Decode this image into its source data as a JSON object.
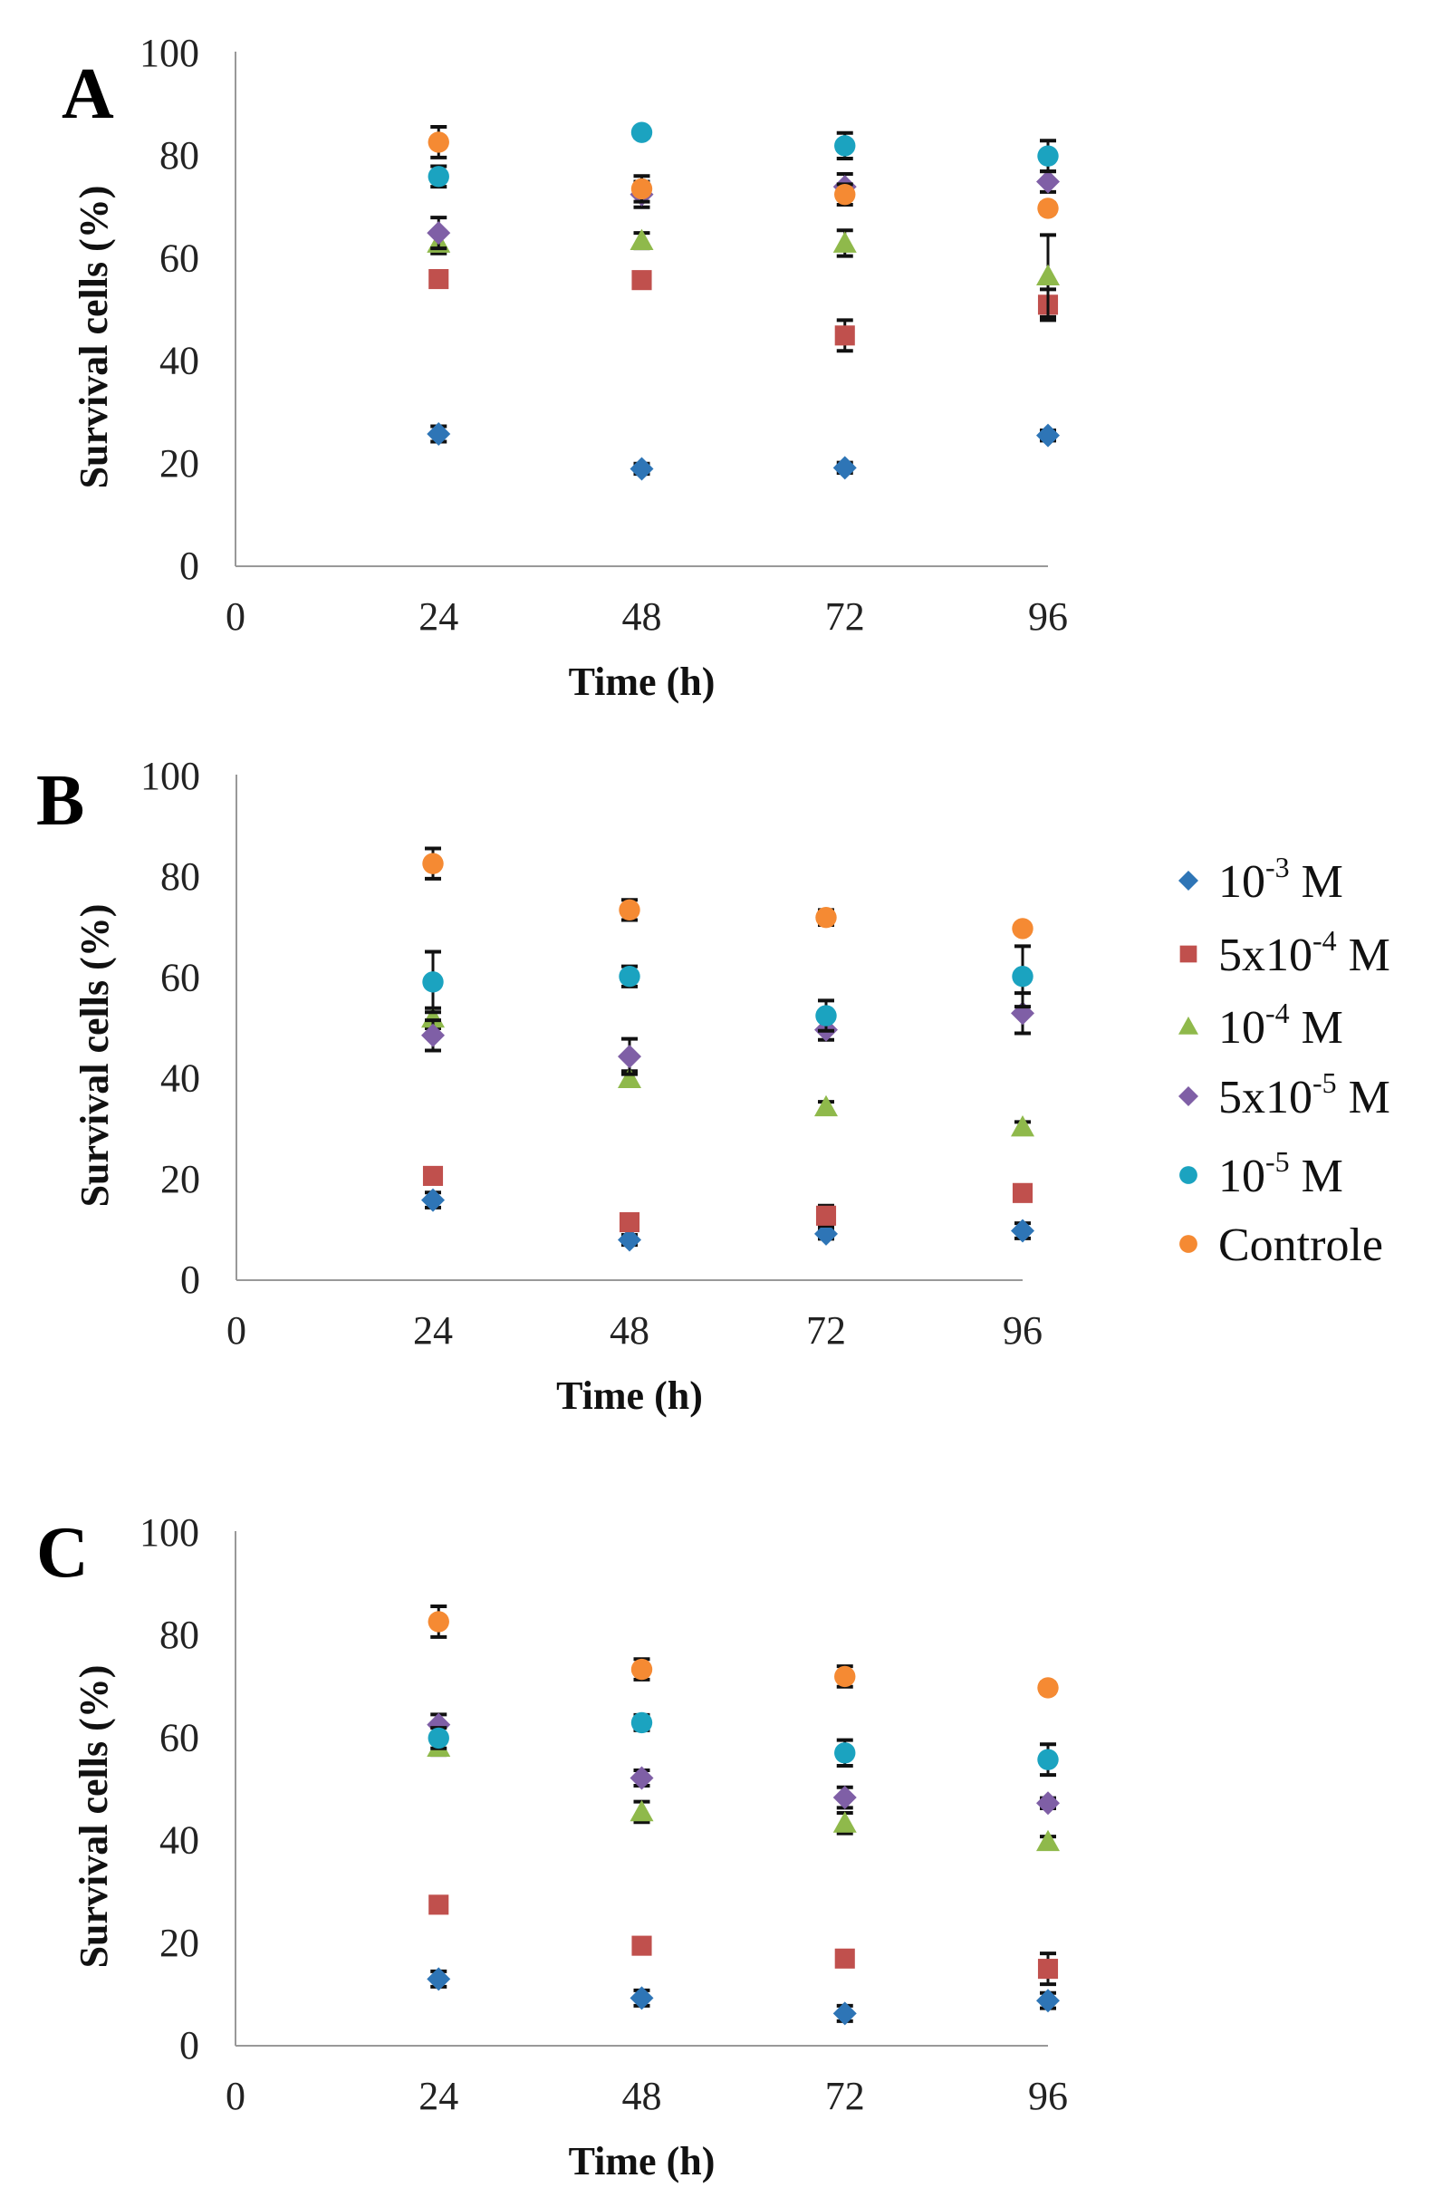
{
  "chart_data": {
    "type": "scatter",
    "x": [
      24,
      48,
      72,
      96
    ],
    "xticks": [
      "0",
      "24",
      "48",
      "72",
      "96"
    ],
    "yticks": [
      "0",
      "20",
      "40",
      "60",
      "80",
      "100"
    ],
    "xlim": [
      0,
      96
    ],
    "ylim": [
      0,
      100
    ],
    "grid": false,
    "legend_placement": "right of panel B",
    "legend": [
      {
        "base": "10",
        "exp": "-3",
        "unit": " M",
        "color": "#2e75b6",
        "marker": "diamond"
      },
      {
        "base": "5x10",
        "exp": "-4",
        "unit": " M",
        "color": "#c0504d",
        "marker": "square"
      },
      {
        "base": "10",
        "exp": "-4",
        "unit": " M",
        "color": "#8fb94b",
        "marker": "triangle"
      },
      {
        "base": "5x10",
        "exp": "-5",
        "unit": " M",
        "color": "#7f5fa6",
        "marker": "diamond"
      },
      {
        "base": "10",
        "exp": "-5",
        "unit": " M",
        "color": "#1ba3c0",
        "marker": "circle"
      },
      {
        "base": "Controle",
        "exp": "",
        "unit": "",
        "color": "#f58a33",
        "marker": "circle"
      }
    ],
    "panels": [
      {
        "label": "A",
        "xlabel": "Time (h)",
        "ylabel": "Survival  cells (%)",
        "series": [
          {
            "values": [
              25.8,
              19.0,
              19.2,
              25.5
            ],
            "error": [
              1.5,
              1.0,
              1.0,
              1.0
            ]
          },
          {
            "values": [
              56.0,
              55.8,
              45.0,
              51.0
            ],
            "error": [
              1.5,
              1.0,
              3.0,
              3.0
            ]
          },
          {
            "values": [
              63.0,
              63.5,
              63.0,
              56.6
            ],
            "error": [
              2.0,
              1.5,
              2.5,
              8.0
            ]
          },
          {
            "values": [
              65.0,
              72.5,
              74.0,
              75.0
            ],
            "error": [
              3.0,
              2.5,
              2.5,
              2.0
            ]
          },
          {
            "values": [
              76.0,
              84.6,
              82.0,
              80.0
            ],
            "error": [
              2.0,
              1.0,
              2.5,
              3.0
            ]
          },
          {
            "values": [
              82.7,
              73.6,
              72.5,
              69.8
            ],
            "error": [
              3.0,
              2.5,
              2.0,
              1.0
            ]
          }
        ]
      },
      {
        "label": "B",
        "xlabel": "Time (h)",
        "ylabel": "Survival cells (%)",
        "series": [
          {
            "values": [
              15.9,
              8.0,
              9.2,
              9.8
            ],
            "error": [
              1.5,
              1.0,
              1.0,
              1.5
            ]
          },
          {
            "values": [
              20.7,
              11.5,
              12.8,
              17.3
            ],
            "error": [
              1.0,
              1.0,
              2.0,
              1.0
            ]
          },
          {
            "values": [
              52.0,
              40.0,
              34.4,
              30.4
            ],
            "error": [
              2.0,
              1.5,
              1.0,
              1.0
            ]
          },
          {
            "values": [
              48.6,
              44.4,
              49.7,
              53.0
            ],
            "error": [
              3.0,
              3.5,
              2.0,
              4.0
            ]
          },
          {
            "values": [
              59.2,
              60.3,
              52.5,
              60.3
            ],
            "error": [
              6.0,
              2.0,
              3.0,
              6.0
            ]
          },
          {
            "values": [
              82.7,
              73.5,
              72.0,
              69.8
            ],
            "error": [
              3.0,
              2.0,
              1.5,
              1.0
            ]
          }
        ]
      },
      {
        "label": "C",
        "xlabel": "Time (h)",
        "ylabel": "Survival cells (%)",
        "series": [
          {
            "values": [
              13.0,
              9.3,
              6.3,
              8.8
            ],
            "error": [
              1.5,
              1.5,
              1.5,
              1.5
            ]
          },
          {
            "values": [
              27.5,
              19.5,
              17.0,
              15.0
            ],
            "error": [
              1.0,
              1.0,
              1.0,
              3.0
            ]
          },
          {
            "values": [
              58.2,
              45.6,
              43.4,
              39.8
            ],
            "error": [
              1.5,
              2.0,
              2.0,
              1.0
            ]
          },
          {
            "values": [
              62.6,
              52.2,
              48.4,
              47.3
            ],
            "error": [
              2.0,
              1.5,
              2.0,
              1.0
            ]
          },
          {
            "values": [
              60.0,
              63.0,
              57.1,
              55.8
            ],
            "error": [
              2.0,
              1.5,
              2.5,
              3.0
            ]
          },
          {
            "values": [
              82.7,
              73.4,
              72.0,
              69.8
            ],
            "error": [
              3.0,
              2.0,
              2.0,
              1.0
            ]
          }
        ]
      }
    ]
  }
}
